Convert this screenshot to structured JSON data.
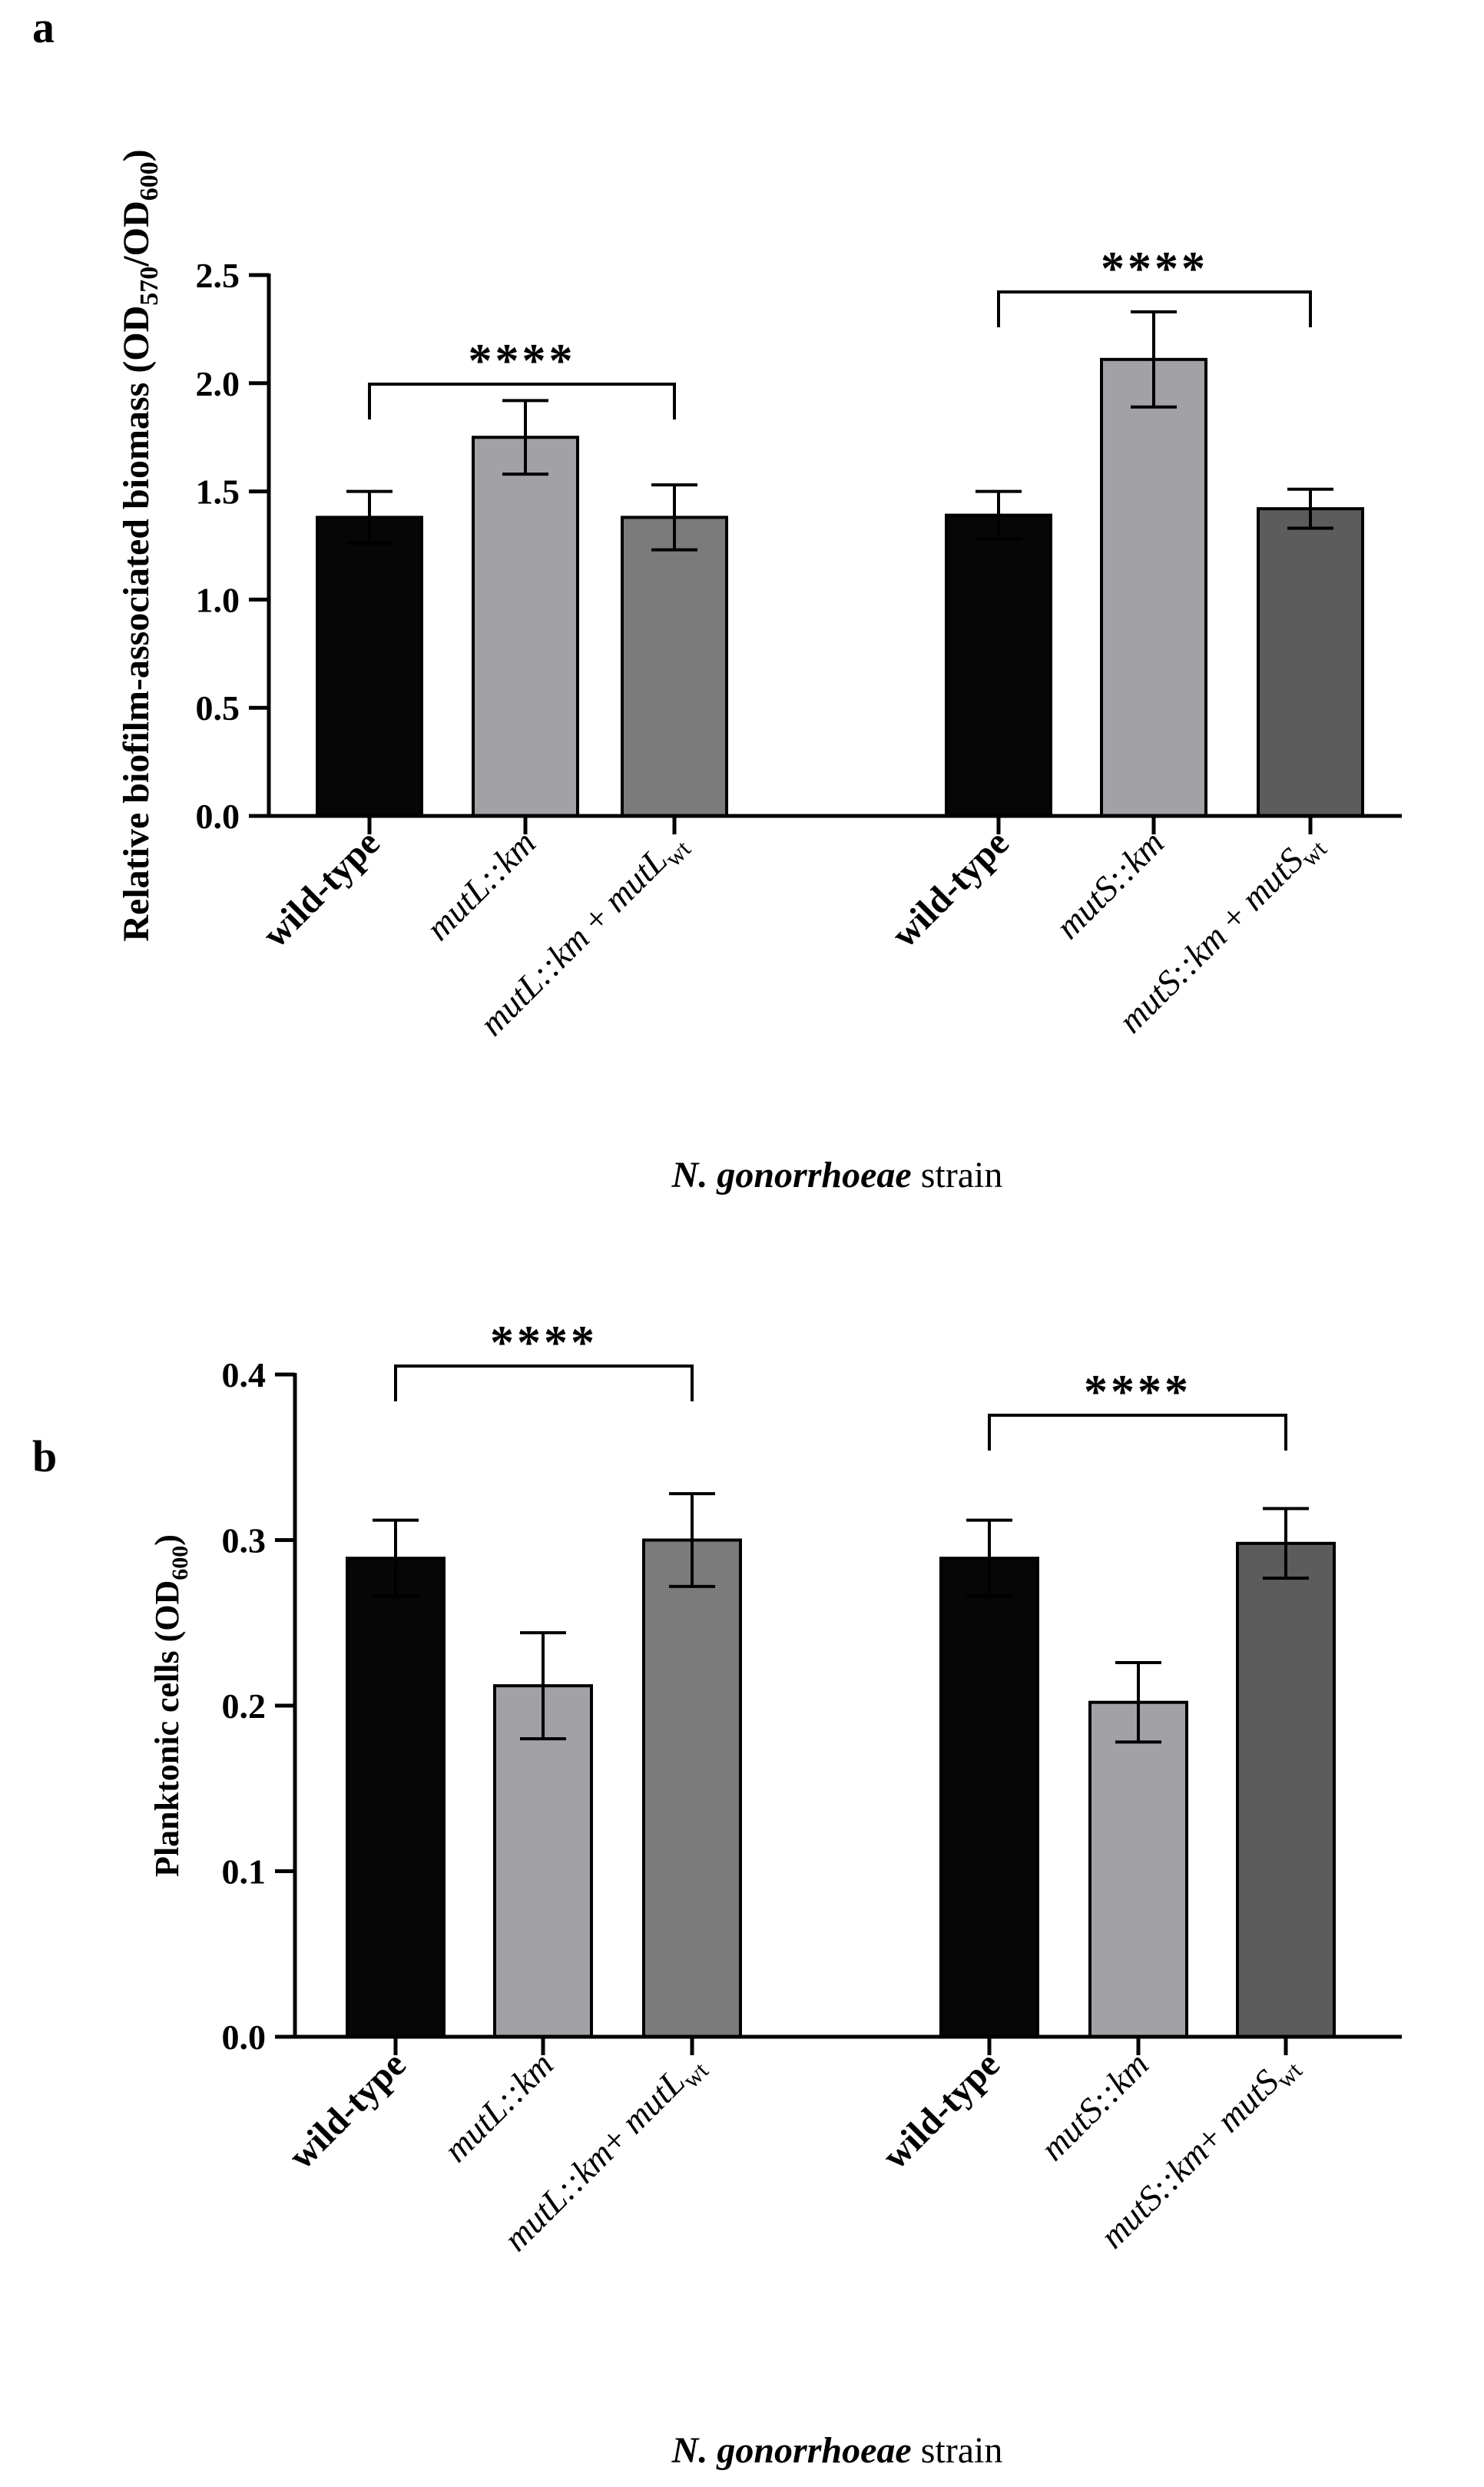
{
  "chart_data": [
    {
      "panel": "a",
      "type": "bar",
      "ylabel": "Relative biofilm-associated biomass (OD570/OD600)",
      "ylabel_parts": {
        "main": "Relative biofilm-associated biomass (OD",
        "sub1": "570",
        "slash": "/OD",
        "sub2": "600",
        "close": ")"
      },
      "xlabel": "N. gonorrhoeae strain",
      "xlabel_parts": {
        "italic": "N. gonorrhoeae",
        "plain": " strain"
      },
      "ylim": [
        0,
        2.5
      ],
      "yticks": [
        "0.0",
        "0.5",
        "1.0",
        "1.5",
        "2.0",
        "2.5"
      ],
      "grid": false,
      "categories": [
        {
          "label": "wild-type",
          "style": "bold"
        },
        {
          "label": "mutL::km",
          "style": "italic"
        },
        {
          "label": "mutL::km + mutLwt",
          "style": "italic-sub",
          "a": "mutL::km",
          "mid": " + ",
          "b": "mutL",
          "sub": "wt"
        },
        {
          "label": "wild-type",
          "style": "bold"
        },
        {
          "label": "mutS::km",
          "style": "italic"
        },
        {
          "label": "mutS::km + mutSwt",
          "style": "italic-sub",
          "a": "mutS::km",
          "mid": " + ",
          "b": "mutS",
          "sub": "wt"
        }
      ],
      "values": [
        1.38,
        1.75,
        1.38,
        1.39,
        2.11,
        1.42
      ],
      "errors": [
        0.12,
        0.17,
        0.15,
        0.11,
        0.22,
        0.09
      ],
      "colors": [
        "#060606",
        "#a1a1a6",
        "#7b7b7b",
        "#060606",
        "#a1a1a6",
        "#5c5c5c"
      ],
      "significance": [
        {
          "from": 0,
          "to": 2,
          "label": "****"
        },
        {
          "from": 3,
          "to": 5,
          "label": "****"
        }
      ]
    },
    {
      "panel": "b",
      "type": "bar",
      "ylabel": "Planktonic cells (OD600)",
      "ylabel_parts": {
        "main": "Planktonic cells (OD",
        "sub1": "600",
        "close": ")"
      },
      "xlabel": "N. gonorrhoeae strain",
      "xlabel_parts": {
        "italic": "N. gonorrhoeae",
        "plain": " strain"
      },
      "ylim": [
        0,
        0.4
      ],
      "yticks": [
        "0.0",
        "0.1",
        "0.2",
        "0.3",
        "0.4"
      ],
      "grid": false,
      "categories": [
        {
          "label": "wild-type",
          "style": "bold"
        },
        {
          "label": "mutL::km",
          "style": "italic"
        },
        {
          "label": "mutL::km+ mutLwt",
          "style": "italic-sub",
          "a": "mutL::km",
          "mid": "+ ",
          "b": "mutL",
          "sub": "wt"
        },
        {
          "label": "wild-type",
          "style": "bold"
        },
        {
          "label": "mutS::km",
          "style": "italic"
        },
        {
          "label": "mutS::km+ mutSwt",
          "style": "italic-sub",
          "a": "mutS::km",
          "mid": "+ ",
          "b": "mutS",
          "sub": "wt"
        }
      ],
      "values": [
        0.289,
        0.212,
        0.3,
        0.289,
        0.202,
        0.298
      ],
      "errors": [
        0.023,
        0.032,
        0.028,
        0.023,
        0.024,
        0.021
      ],
      "colors": [
        "#060606",
        "#a1a1a6",
        "#7b7b7b",
        "#060606",
        "#a1a1a6",
        "#5c5c5c"
      ],
      "significance": [
        {
          "from": 0,
          "to": 2,
          "label": "****"
        },
        {
          "from": 3,
          "to": 5,
          "label": "****"
        }
      ]
    }
  ]
}
